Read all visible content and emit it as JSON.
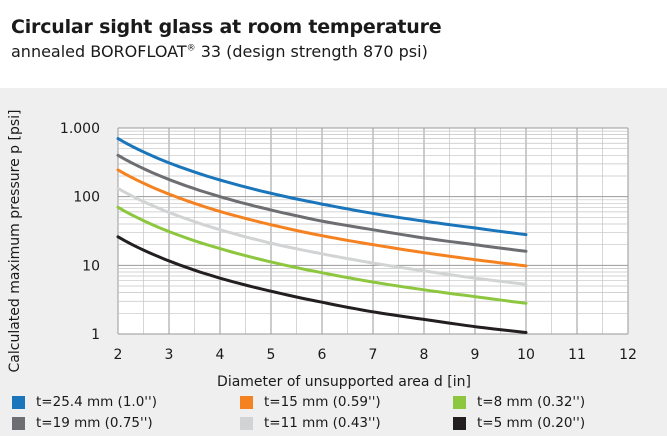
{
  "header": {
    "title": "Circular sight glass at room temperature",
    "subtitle_pre": "annealed BOROFLOAT",
    "subtitle_reg": "®",
    "subtitle_post": " 33 (design strength 870 psi)"
  },
  "chart_data": {
    "type": "line",
    "title": "Circular sight glass at room temperature",
    "subtitle": "annealed BOROFLOAT® 33 (design strength 870 psi)",
    "xlabel": "Diameter of unsupported area d [in]",
    "ylabel": "Calculated maximum pressure p [psi]",
    "xlim": [
      2,
      12
    ],
    "ylim": [
      1,
      1000
    ],
    "yscale": "log",
    "grid": true,
    "legend_position": "bottom",
    "x_ticks": [
      "2",
      "3",
      "4",
      "5",
      "6",
      "7",
      "8",
      "9",
      "10",
      "11",
      "12"
    ],
    "y_ticks": [
      {
        "value": 1000,
        "label": "1.000"
      },
      {
        "value": 100,
        "label": "100"
      },
      {
        "value": 10,
        "label": "10"
      },
      {
        "value": 1,
        "label": "1"
      }
    ],
    "x": [
      2,
      3,
      4,
      5,
      6,
      7,
      8,
      9,
      10
    ],
    "series": [
      {
        "name": "t=25.4 mm (1.0'')",
        "color": "#1a75bb",
        "values": [
          700,
          311,
          175,
          112,
          78,
          57,
          44,
          35,
          28
        ]
      },
      {
        "name": "t=19 mm (0.75'')",
        "color": "#6d6e71",
        "values": [
          400,
          178,
          100,
          64,
          44,
          33,
          25,
          20,
          16
        ]
      },
      {
        "name": "t=15 mm (0.59'')",
        "color": "#f58220",
        "values": [
          245,
          109,
          61,
          39,
          27,
          20,
          15.3,
          12.1,
          9.8
        ]
      },
      {
        "name": "t=11 mm (0.43'')",
        "color": "#d1d3d4",
        "values": [
          132,
          59,
          33,
          21,
          14.7,
          10.8,
          8.3,
          6.5,
          5.3
        ]
      },
      {
        "name": "t=8 mm (0.32'')",
        "color": "#8dc63f",
        "values": [
          70,
          31,
          17.5,
          11.2,
          7.8,
          5.7,
          4.4,
          3.5,
          2.8
        ]
      },
      {
        "name": "t=5 mm (0.20'')",
        "color": "#231f20",
        "values": [
          26,
          11.6,
          6.5,
          4.2,
          2.9,
          2.1,
          1.63,
          1.28,
          1.05
        ]
      }
    ]
  },
  "legend": [
    {
      "label": "t=25.4 mm (1.0'')",
      "color": "#1a75bb"
    },
    {
      "label": "t=15 mm (0.59'')",
      "color": "#f58220"
    },
    {
      "label": "t=8 mm (0.32'')",
      "color": "#8dc63f"
    },
    {
      "label": "t=19 mm (0.75'')",
      "color": "#6d6e71"
    },
    {
      "label": "t=11 mm (0.43'')",
      "color": "#d1d3d4"
    },
    {
      "label": "t=5 mm (0.20'')",
      "color": "#231f20"
    }
  ]
}
